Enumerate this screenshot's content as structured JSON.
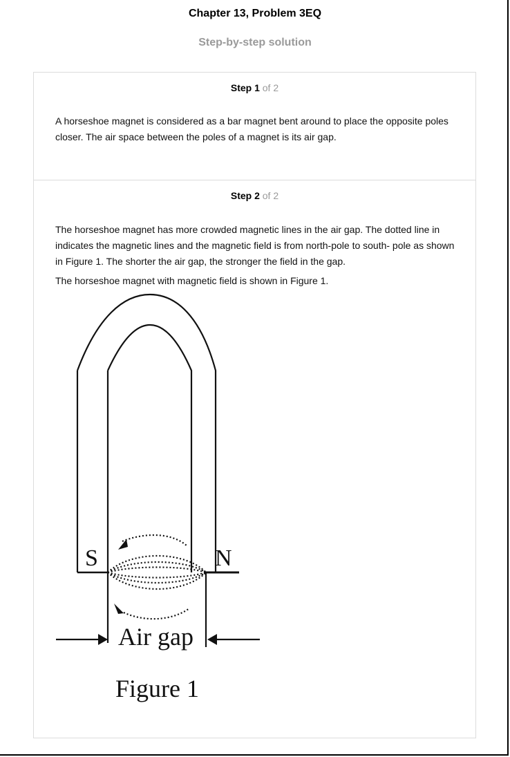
{
  "header": {
    "title": "Chapter 13, Problem 3EQ",
    "subtitle": "Step-by-step solution"
  },
  "steps": [
    {
      "label": "Step 1",
      "of": "of 2",
      "paragraphs": [
        "A horseshoe magnet is considered as a bar magnet bent around to place the opposite poles closer. The air space between the poles of a magnet is its air gap."
      ]
    },
    {
      "label": "Step 2",
      "of": "of 2",
      "paragraphs": [
        "The horseshoe magnet has more crowded magnetic lines in the air gap. The dotted line in indicates the magnetic lines and the magnetic field is from north-pole to south- pole as shown in Figure 1. The shorter the air gap, the stronger the field in the gap.",
        "The horseshoe magnet with magnetic field is shown in Figure 1."
      ]
    }
  ],
  "figure": {
    "pole_left": "S",
    "pole_right": "N",
    "gap_label": "Air gap",
    "caption": "Figure 1"
  }
}
